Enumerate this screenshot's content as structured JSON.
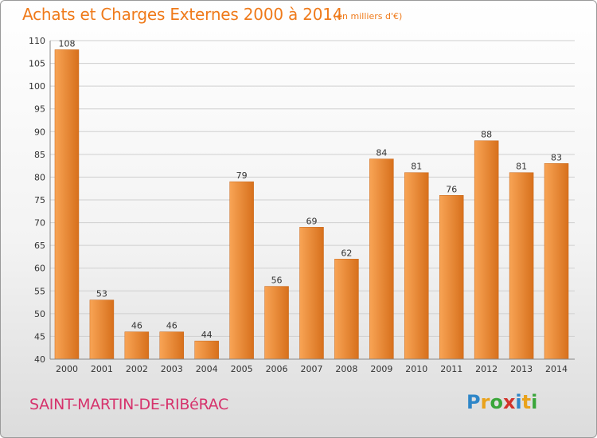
{
  "header": {
    "title": "Achats et Charges Externes 2000 à 2014",
    "subtitle": "(en milliers d'€)"
  },
  "footer": {
    "commune": "SAINT-MARTIN-DE-RIBéRAC",
    "logo_letters": [
      "P",
      "r",
      "o",
      "x",
      "i",
      "t",
      "i"
    ],
    "logo_colors": [
      "#2e86c8",
      "#e9a21b",
      "#3aa63a",
      "#d2332b",
      "#2e86c8",
      "#e9a21b",
      "#3aa63a"
    ]
  },
  "colors": {
    "bar_light": "#f8a455",
    "bar_dark": "#d7701c",
    "title": "#ef7a1a",
    "grid": "#cfcfcf"
  },
  "chart_data": {
    "type": "bar",
    "title": "Achats et Charges Externes 2000 à 2014",
    "subtitle": "(en milliers d'€)",
    "categories": [
      "2000",
      "2001",
      "2002",
      "2003",
      "2004",
      "2005",
      "2006",
      "2007",
      "2008",
      "2009",
      "2010",
      "2011",
      "2012",
      "2013",
      "2014"
    ],
    "values": [
      108,
      53,
      46,
      46,
      44,
      79,
      56,
      69,
      62,
      84,
      81,
      76,
      88,
      81,
      83
    ],
    "ylim": [
      40,
      110
    ],
    "yticks": [
      40,
      45,
      50,
      55,
      60,
      65,
      70,
      75,
      80,
      85,
      90,
      95,
      100,
      105,
      110
    ],
    "grid": true,
    "data_labels": true
  }
}
